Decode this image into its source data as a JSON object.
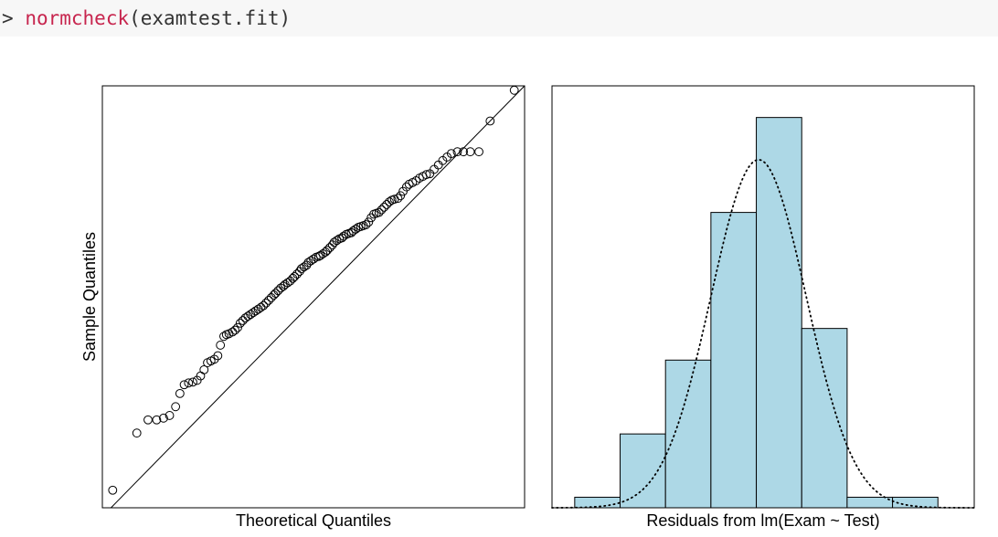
{
  "console": {
    "prompt": ">",
    "function_name": "normcheck",
    "open_paren": "(",
    "argument": "examtest.fit",
    "close_paren": ")"
  },
  "colors": {
    "histogram_fill": "#add8e6",
    "code_background": "#f7f7f7",
    "function_color": "#c7254e"
  },
  "chart_data": [
    {
      "type": "scatter",
      "subtype": "qq-plot",
      "title": "",
      "xlabel": "Theoretical Quantiles",
      "ylabel": "Sample Quantiles",
      "xlim": [
        -2.45,
        2.45
      ],
      "ylim": [
        -2.35,
        2.45
      ],
      "ticks_shown": false,
      "reference_line": {
        "intercept": 0,
        "slope": 1
      },
      "points": {
        "x": [
          -2.33,
          -2.05,
          -1.92,
          -1.82,
          -1.74,
          -1.67,
          -1.6,
          -1.55,
          -1.5,
          -1.45,
          -1.4,
          -1.35,
          -1.31,
          -1.27,
          -1.23,
          -1.19,
          -1.15,
          -1.11,
          -1.08,
          -1.04,
          -1.01,
          -0.98,
          -0.94,
          -0.91,
          -0.88,
          -0.85,
          -0.82,
          -0.79,
          -0.76,
          -0.73,
          -0.7,
          -0.67,
          -0.64,
          -0.61,
          -0.58,
          -0.55,
          -0.52,
          -0.49,
          -0.46,
          -0.44,
          -0.41,
          -0.38,
          -0.35,
          -0.33,
          -0.3,
          -0.27,
          -0.24,
          -0.22,
          -0.19,
          -0.16,
          -0.14,
          -0.11,
          -0.08,
          -0.06,
          -0.03,
          0,
          0.03,
          0.06,
          0.08,
          0.11,
          0.14,
          0.16,
          0.19,
          0.22,
          0.24,
          0.27,
          0.3,
          0.33,
          0.35,
          0.38,
          0.41,
          0.44,
          0.46,
          0.49,
          0.52,
          0.55,
          0.58,
          0.61,
          0.64,
          0.67,
          0.7,
          0.73,
          0.76,
          0.79,
          0.82,
          0.85,
          0.88,
          0.91,
          0.94,
          0.98,
          1.01,
          1.04,
          1.08,
          1.11,
          1.15,
          1.19,
          1.23,
          1.27,
          1.31,
          1.35,
          1.4,
          1.45,
          1.5,
          1.55,
          1.6,
          1.67,
          1.74,
          1.82,
          1.92,
          2.05,
          2.33
        ],
        "y": [
          -2.15,
          -1.5,
          -1.35,
          -1.35,
          -1.33,
          -1.3,
          -1.2,
          -1.05,
          -0.95,
          -0.93,
          -0.92,
          -0.9,
          -0.85,
          -0.78,
          -0.7,
          -0.68,
          -0.66,
          -0.62,
          -0.5,
          -0.4,
          -0.38,
          -0.37,
          -0.35,
          -0.33,
          -0.3,
          -0.25,
          -0.22,
          -0.19,
          -0.17,
          -0.15,
          -0.13,
          -0.11,
          -0.09,
          -0.07,
          -0.05,
          -0.02,
          0.01,
          0.04,
          0.07,
          0.09,
          0.12,
          0.15,
          0.17,
          0.19,
          0.21,
          0.23,
          0.26,
          0.28,
          0.31,
          0.34,
          0.37,
          0.39,
          0.41,
          0.44,
          0.46,
          0.48,
          0.5,
          0.51,
          0.52,
          0.54,
          0.56,
          0.58,
          0.61,
          0.64,
          0.67,
          0.69,
          0.71,
          0.72,
          0.74,
          0.76,
          0.77,
          0.78,
          0.8,
          0.82,
          0.84,
          0.85,
          0.86,
          0.87,
          0.9,
          0.95,
          0.99,
          1.0,
          1.01,
          1.04,
          1.07,
          1.1,
          1.13,
          1.15,
          1.16,
          1.17,
          1.2,
          1.25,
          1.3,
          1.33,
          1.35,
          1.37,
          1.4,
          1.42,
          1.44,
          1.45,
          1.5,
          1.55,
          1.6,
          1.64,
          1.68,
          1.7,
          1.7,
          1.7,
          1.7,
          2.05,
          2.4
        ]
      }
    },
    {
      "type": "bar",
      "subtype": "histogram",
      "title": "",
      "xlabel": "Residuals from lm(Exam ~ Test)",
      "ylabel": "",
      "ticks_shown": false,
      "bin_edges": [
        -3.5,
        -2.5,
        -1.5,
        -0.5,
        0.5,
        1.5,
        2.5,
        3.5,
        4.5
      ],
      "counts": [
        1,
        7,
        14,
        28,
        37,
        17,
        1,
        1
      ],
      "ylim": [
        0,
        40
      ],
      "xlim": [
        -4.0,
        5.3
      ],
      "normal_curve": {
        "mean": 0.55,
        "sd": 1.05,
        "peak_count": 33,
        "style": "dotted"
      }
    }
  ]
}
